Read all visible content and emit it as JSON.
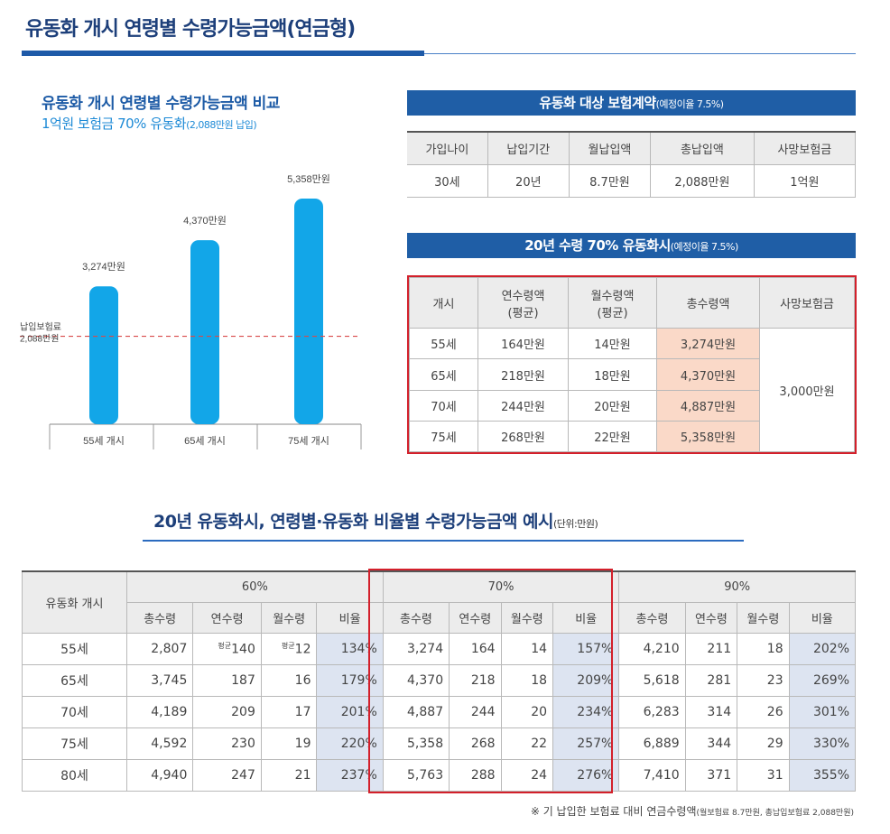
{
  "page": {
    "title": "유동화 개시 연령별 수령가능금액(연금형)"
  },
  "chart_section": {
    "title": "유동화 개시 연령별 수령가능금액 비교",
    "subtitle_main": "1억원 보험금 70% 유동화",
    "subtitle_note": "(2,088만원 납입)"
  },
  "chart_data": {
    "type": "bar",
    "categories": [
      "55세 개시",
      "65세 개시",
      "75세 개시"
    ],
    "values": [
      3274,
      4370,
      5358
    ],
    "value_labels": [
      "3,274만원",
      "4,370만원",
      "5,358만원"
    ],
    "unit": "만원",
    "ylim": [
      0,
      6000
    ],
    "reference_line": {
      "value": 2088,
      "label_line1": "납입보험료",
      "label_line2": "2,088만원"
    },
    "colors": {
      "bar": "#12a6e8",
      "reference": "#d84a4a"
    }
  },
  "contract": {
    "header_main": "유동화 대상 보험계약",
    "header_note": "(예정이율 7.5%)",
    "columns": [
      "가입나이",
      "납입기간",
      "월납입액",
      "총납입액",
      "사망보험금"
    ],
    "row": [
      "30세",
      "20년",
      "8.7만원",
      "2,088만원",
      "1억원"
    ]
  },
  "payout": {
    "header_main": "20년 수령 70% 유동화시",
    "header_note": "(예정이율 7.5%)",
    "columns": [
      "개시",
      "연수령액\n(평균)",
      "월수령액\n(평균)",
      "총수령액",
      "사망보험금"
    ],
    "rows": [
      [
        "55세",
        "164만원",
        "14만원",
        "3,274만원"
      ],
      [
        "65세",
        "218만원",
        "18만원",
        "4,370만원"
      ],
      [
        "70세",
        "244만원",
        "20만원",
        "4,887만원"
      ],
      [
        "75세",
        "268만원",
        "22만원",
        "5,358만원"
      ]
    ],
    "death_benefit": "3,000만원"
  },
  "matrix": {
    "title_main": "20년 유동화시, 연령별·유동화 비율별 수령가능금액 예시",
    "title_note": "(단위:만원)",
    "row_header": "유동화 개시",
    "groups": [
      "60%",
      "70%",
      "90%"
    ],
    "subcolumns": [
      "총수령",
      "연수령",
      "월수령",
      "비율"
    ],
    "avg_tag": "평균",
    "rows": [
      {
        "age": "55세",
        "cells": [
          "2,807",
          "140",
          "12",
          "134%",
          "3,274",
          "164",
          "14",
          "157%",
          "4,210",
          "211",
          "18",
          "202%"
        ]
      },
      {
        "age": "65세",
        "cells": [
          "3,745",
          "187",
          "16",
          "179%",
          "4,370",
          "218",
          "18",
          "209%",
          "5,618",
          "281",
          "23",
          "269%"
        ]
      },
      {
        "age": "70세",
        "cells": [
          "4,189",
          "209",
          "17",
          "201%",
          "4,887",
          "244",
          "20",
          "234%",
          "6,283",
          "314",
          "26",
          "301%"
        ]
      },
      {
        "age": "75세",
        "cells": [
          "4,592",
          "230",
          "19",
          "220%",
          "5,358",
          "268",
          "22",
          "257%",
          "6,889",
          "344",
          "29",
          "330%"
        ]
      },
      {
        "age": "80세",
        "cells": [
          "4,940",
          "247",
          "21",
          "237%",
          "5,763",
          "288",
          "24",
          "276%",
          "7,410",
          "371",
          "31",
          "355%"
        ]
      }
    ]
  },
  "footnote": {
    "main": "※ 기 납입한 보험료 대비 연금수령액",
    "note": "(월보험료 8.7만원, 총납입보험료 2,088만원)"
  }
}
